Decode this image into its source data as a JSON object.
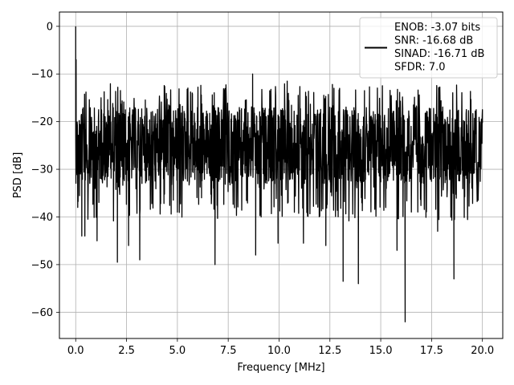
{
  "chart_data": {
    "type": "line",
    "title": "",
    "xlabel": "Frequency [MHz]",
    "ylabel": "PSD [dB]",
    "xlim": [
      -0.8,
      21.0
    ],
    "ylim": [
      -65.5,
      3.0
    ],
    "xticks": [
      0.0,
      2.5,
      5.0,
      7.5,
      10.0,
      12.5,
      15.0,
      17.5,
      20.0
    ],
    "xtick_labels": [
      "0.0",
      "2.5",
      "5.0",
      "7.5",
      "10.0",
      "12.5",
      "15.0",
      "17.5",
      "20.0"
    ],
    "yticks": [
      0,
      -10,
      -20,
      -30,
      -40,
      -50,
      -60
    ],
    "ytick_labels": [
      "0",
      "−10",
      "−20",
      "−30",
      "−40",
      "−50",
      "−60"
    ],
    "grid": true,
    "legend_position": "top-right",
    "legend": {
      "lines": [
        "ENOB: -3.07 bits",
        "SNR: -16.68 dB",
        "SINAD: -16.71 dB",
        "SFDR: 7.0"
      ]
    },
    "series": [
      {
        "color": "#000000",
        "x_range": [
          0.0,
          20.0
        ],
        "noise_band": {
          "top": -17.0,
          "bottom": -33.0
        },
        "peak": {
          "x": 0.0,
          "y": 0.0
        },
        "notable_points": [
          {
            "x": 0.02,
            "y": -7.0
          },
          {
            "x": 0.1,
            "y": -38.0
          },
          {
            "x": 0.3,
            "y": -44.0
          },
          {
            "x": 0.45,
            "y": -44.0
          },
          {
            "x": 1.05,
            "y": -45.0
          },
          {
            "x": 2.05,
            "y": -49.5
          },
          {
            "x": 2.6,
            "y": -46.0
          },
          {
            "x": 3.15,
            "y": -49.0
          },
          {
            "x": 5.0,
            "y": -39.0
          },
          {
            "x": 6.85,
            "y": -50.0
          },
          {
            "x": 8.7,
            "y": -10.0
          },
          {
            "x": 8.85,
            "y": -48.0
          },
          {
            "x": 9.95,
            "y": -45.5
          },
          {
            "x": 10.4,
            "y": -11.5
          },
          {
            "x": 11.2,
            "y": -45.5
          },
          {
            "x": 12.3,
            "y": -46.0
          },
          {
            "x": 12.7,
            "y": -13.0
          },
          {
            "x": 13.15,
            "y": -53.5
          },
          {
            "x": 13.9,
            "y": -54.0
          },
          {
            "x": 14.2,
            "y": -13.5
          },
          {
            "x": 15.8,
            "y": -47.0
          },
          {
            "x": 16.2,
            "y": -62.0
          },
          {
            "x": 17.8,
            "y": -43.0
          },
          {
            "x": 18.6,
            "y": -53.0
          },
          {
            "x": 20.0,
            "y": -17.5
          }
        ]
      }
    ]
  }
}
